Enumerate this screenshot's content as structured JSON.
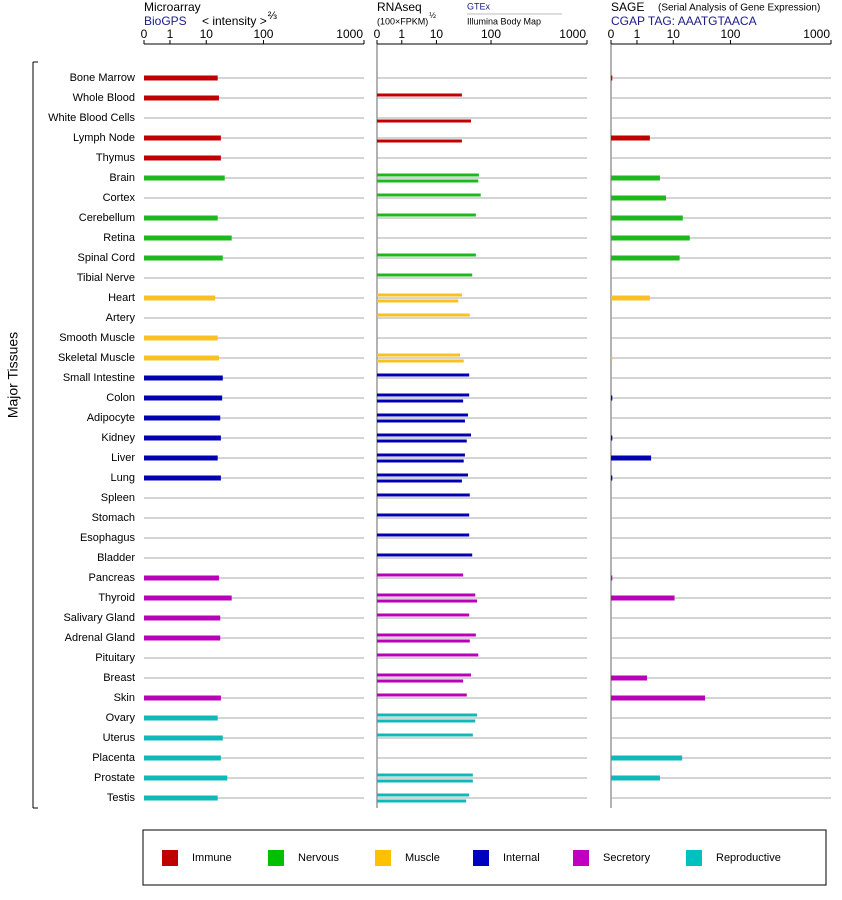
{
  "chart_data": {
    "type": "bar",
    "orientation": "horizontal",
    "y_label": "Major Tissues",
    "categories": [
      "Bone Marrow",
      "Whole Blood",
      "White Blood Cells",
      "Lymph Node",
      "Thymus",
      "Brain",
      "Cortex",
      "Cerebellum",
      "Retina",
      "Spinal Cord",
      "Tibial Nerve",
      "Heart",
      "Artery",
      "Smooth Muscle",
      "Skeletal Muscle",
      "Small Intestine",
      "Colon",
      "Adipocyte",
      "Kidney",
      "Liver",
      "Lung",
      "Spleen",
      "Stomach",
      "Esophagus",
      "Bladder",
      "Pancreas",
      "Thyroid",
      "Salivary Gland",
      "Adrenal Gland",
      "Pituitary",
      "Breast",
      "Skin",
      "Ovary",
      "Uterus",
      "Placenta",
      "Prostate",
      "Testis"
    ],
    "category_colors": [
      "#c00000",
      "#c00000",
      "#c00000",
      "#c00000",
      "#c00000",
      "#1cb81c",
      "#1cb81c",
      "#1cb81c",
      "#1cb81c",
      "#1cb81c",
      "#1cb81c",
      "#f8c020",
      "#f8c020",
      "#f8c020",
      "#f8c020",
      "#0000b0",
      "#0000b0",
      "#0000b0",
      "#0000b0",
      "#0000b0",
      "#0000b0",
      "#0000b0",
      "#0000b0",
      "#0000b0",
      "#0000b0",
      "#b800b8",
      "#b800b8",
      "#b800b8",
      "#b800b8",
      "#b800b8",
      "#b800b8",
      "#b800b8",
      "#10b8b8",
      "#10b8b8",
      "#10b8b8",
      "#10b8b8",
      "#10b8b8"
    ],
    "legend": [
      {
        "name": "Immune",
        "color": "#c00000"
      },
      {
        "name": "Nervous",
        "color": "#00c000"
      },
      {
        "name": "Muscle",
        "color": "#ffc000"
      },
      {
        "name": "Internal",
        "color": "#0000c0"
      },
      {
        "name": "Secretory",
        "color": "#c000c0"
      },
      {
        "name": "Reproductive",
        "color": "#00c0c0"
      }
    ],
    "panels": [
      {
        "title": "Microarray",
        "source": "BioGPS",
        "axis_label": "< intensity >",
        "axis_exponent": "⅔",
        "xlim": [
          0,
          1000
        ],
        "xticks": [
          0,
          1,
          10,
          100,
          1000
        ],
        "series": [
          {
            "values": [
              28,
              30,
              null,
              33,
              33,
              39,
              null,
              28,
              50,
              36,
              null,
              24,
              null,
              28,
              30,
              36,
              35,
              32,
              33,
              28,
              33,
              null,
              null,
              null,
              null,
              30,
              50,
              32,
              32,
              null,
              null,
              33,
              28,
              36,
              33,
              43,
              28
            ]
          }
        ]
      },
      {
        "title": "RNAseq",
        "axis_label": "(100×FPKM)",
        "axis_exponent": "½",
        "xlim": [
          0,
          1000
        ],
        "xticks": [
          0,
          1,
          10,
          100,
          1000
        ],
        "series": [
          {
            "name": "GTEx",
            "values": [
              null,
              52,
              null,
              null,
              null,
              80,
              83,
              75,
              null,
              75,
              69,
              52,
              65,
              null,
              49,
              64,
              64,
              62,
              67,
              57,
              62,
              65,
              64,
              64,
              69,
              54,
              74,
              64,
              75,
              79,
              67,
              60,
              77,
              70,
              null,
              70,
              64
            ]
          },
          {
            "name": "Illumina Body Map",
            "values": [
              null,
              null,
              67,
              52,
              null,
              79,
              null,
              null,
              null,
              null,
              null,
              46,
              null,
              null,
              55,
              null,
              54,
              57,
              60,
              55,
              52,
              null,
              null,
              null,
              null,
              null,
              77,
              null,
              65,
              null,
              54,
              null,
              74,
              null,
              null,
              70,
              59
            ]
          }
        ]
      },
      {
        "title": "SAGE",
        "subtitle": "(Serial Analysis of Gene Expression)",
        "source": "CGAP TAG: AAATGTAACA",
        "xlim": [
          0,
          1000
        ],
        "xticks": [
          0,
          1,
          10,
          100,
          1000
        ],
        "series": [
          {
            "values": [
              0.05,
              null,
              null,
              4.2,
              null,
              6.7,
              8.2,
              25,
              36,
              20,
              null,
              4.2,
              null,
              null,
              0.05,
              null,
              0.05,
              null,
              0.05,
              4.5,
              0.05,
              null,
              null,
              null,
              null,
              0.05,
              12,
              null,
              null,
              null,
              3.5,
              60,
              null,
              null,
              24,
              6.7,
              null
            ]
          }
        ]
      }
    ]
  }
}
